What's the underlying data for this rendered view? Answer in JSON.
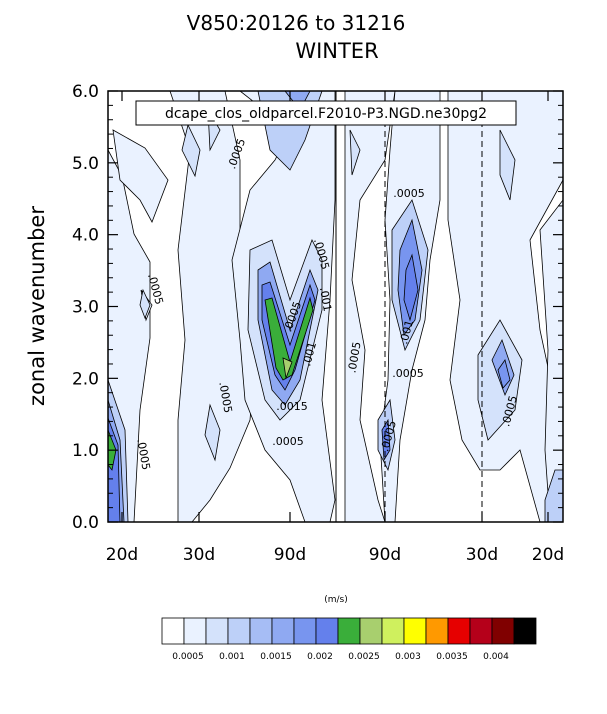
{
  "chart_data": {
    "type": "contour",
    "title": "WINTER",
    "subtitle": "V850:20126 to 31216",
    "case_label": "dcape_clos_oldparcel.F2010-P3.NGD.ne30pg2",
    "ylabel": "zonal wavenumber",
    "ylim": [
      0.0,
      6.0
    ],
    "y_ticks": [
      "0.0",
      "1.0",
      "2.0",
      "3.0",
      "4.0",
      "5.0",
      "6.0"
    ],
    "x_ticks": [
      "20d",
      "30d",
      "90d",
      "90d",
      "30d",
      "20d"
    ],
    "colorbar": {
      "units": "(m/s)",
      "levels": [
        "0.0005",
        "0.001",
        "0.0015",
        "0.002",
        "0.0025",
        "0.003",
        "0.0035",
        "0.004"
      ],
      "colors": [
        "#ffffff",
        "#eaf2ff",
        "#d4e2fb",
        "#bdd0f8",
        "#a6bdf5",
        "#8fa9f2",
        "#7895ef",
        "#6480ec",
        "#3aae3a",
        "#a8cf6e",
        "#cff05e",
        "#ffff00",
        "#ff9900",
        "#e60000",
        "#b5001a",
        "#800000",
        "#000000"
      ]
    },
    "contour_labels": [
      {
        "text": ".0005",
        "x_side": "westward",
        "x_period": "20d",
        "wavenumber": 3.1
      },
      {
        "text": ".0005",
        "x_side": "westward",
        "x_period": "20d",
        "wavenumber": 1.0
      },
      {
        "text": ".0005",
        "x_side": "westward",
        "x_period": "30d",
        "wavenumber": 5.4
      },
      {
        "text": ".0005",
        "x_side": "westward",
        "x_period": "30d",
        "wavenumber": 1.7
      },
      {
        "text": ".0005",
        "x_side": "westward",
        "x_period": "90d",
        "wavenumber": 3.4
      },
      {
        "text": ".0005",
        "x_side": "westward",
        "x_period": "90d",
        "wavenumber": 0.9
      },
      {
        "text": ".0005",
        "x_side": "westward",
        "x_period": "90d",
        "wavenumber": 3.7
      },
      {
        "text": ".001",
        "x_side": "westward",
        "x_period": "90d",
        "wavenumber": 3.0
      },
      {
        "text": ".001",
        "x_side": "westward",
        "x_period": "90d",
        "wavenumber": 2.3
      },
      {
        "text": ".0015",
        "x_side": "westward",
        "x_period": "90d",
        "wavenumber": 1.5
      },
      {
        "text": ".0005",
        "x_side": "eastward",
        "x_period": "90d",
        "wavenumber": 2.3
      },
      {
        "text": ".0005",
        "x_side": "eastward",
        "x_period": "90d",
        "wavenumber": 4.5
      },
      {
        "text": ".001",
        "x_side": "eastward",
        "x_period": "90d",
        "wavenumber": 2.6
      },
      {
        "text": ".0005",
        "x_side": "eastward",
        "x_period": "90d",
        "wavenumber": 2.0
      },
      {
        "text": ".0005",
        "x_side": "eastward",
        "x_period": "90d",
        "wavenumber": 1.2
      },
      {
        "text": ".0005",
        "x_side": "eastward",
        "x_period": "30d",
        "wavenumber": 1.6
      }
    ],
    "grid": false,
    "legend_placement": "bottom"
  }
}
